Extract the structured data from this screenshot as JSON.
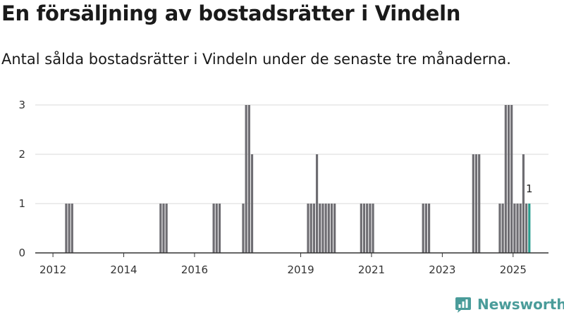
{
  "title": "En försäljning av bostadsrätter i Vindeln",
  "subtitle": "Antal sålda bostadsrätter i Vindeln under de senaste tre månaderna.",
  "brand": {
    "name": "Newsworthy",
    "color": "#4a9c9a"
  },
  "colors": {
    "bar": "#6e6d72",
    "highlight": "#2a9d8f",
    "grid": "#d9d9d9",
    "axis": "#333333"
  },
  "chart_data": {
    "type": "bar",
    "x_unit": "months",
    "xlim": [
      "2011-07",
      "2026-01"
    ],
    "ylim": [
      0,
      3
    ],
    "y_ticks": [
      0,
      1,
      2,
      3
    ],
    "x_ticks": [
      {
        "label": "2012",
        "at": "2012-01"
      },
      {
        "label": "2014",
        "at": "2014-01"
      },
      {
        "label": "2016",
        "at": "2016-01"
      },
      {
        "label": "2019",
        "at": "2019-01"
      },
      {
        "label": "2021",
        "at": "2021-01"
      },
      {
        "label": "2023",
        "at": "2023-01"
      },
      {
        "label": "2025",
        "at": "2025-01"
      }
    ],
    "grid": true,
    "series": [
      {
        "points": [
          [
            "2012-05",
            1
          ],
          [
            "2012-06",
            1
          ],
          [
            "2012-07",
            1
          ],
          [
            "2015-01",
            1
          ],
          [
            "2015-02",
            1
          ],
          [
            "2015-03",
            1
          ],
          [
            "2016-07",
            1
          ],
          [
            "2016-08",
            1
          ],
          [
            "2016-09",
            1
          ],
          [
            "2017-05",
            1
          ],
          [
            "2017-06",
            3
          ],
          [
            "2017-07",
            3
          ],
          [
            "2017-08",
            2
          ],
          [
            "2019-03",
            1
          ],
          [
            "2019-04",
            1
          ],
          [
            "2019-05",
            1
          ],
          [
            "2019-06",
            2
          ],
          [
            "2019-07",
            1
          ],
          [
            "2019-08",
            1
          ],
          [
            "2019-09",
            1
          ],
          [
            "2019-10",
            1
          ],
          [
            "2019-11",
            1
          ],
          [
            "2019-12",
            1
          ],
          [
            "2020-09",
            1
          ],
          [
            "2020-10",
            1
          ],
          [
            "2020-11",
            1
          ],
          [
            "2020-12",
            1
          ],
          [
            "2021-01",
            1
          ],
          [
            "2022-06",
            1
          ],
          [
            "2022-07",
            1
          ],
          [
            "2022-08",
            1
          ],
          [
            "2023-11",
            2
          ],
          [
            "2023-12",
            2
          ],
          [
            "2024-01",
            2
          ],
          [
            "2024-08",
            1
          ],
          [
            "2024-09",
            1
          ],
          [
            "2024-10",
            3
          ],
          [
            "2024-11",
            3
          ],
          [
            "2024-12",
            3
          ],
          [
            "2025-01",
            1
          ],
          [
            "2025-02",
            1
          ],
          [
            "2025-03",
            1
          ],
          [
            "2025-04",
            2
          ],
          [
            "2025-05",
            1
          ]
        ],
        "highlight": {
          "x": "2025-06",
          "value": 1,
          "label": "1"
        }
      }
    ]
  }
}
